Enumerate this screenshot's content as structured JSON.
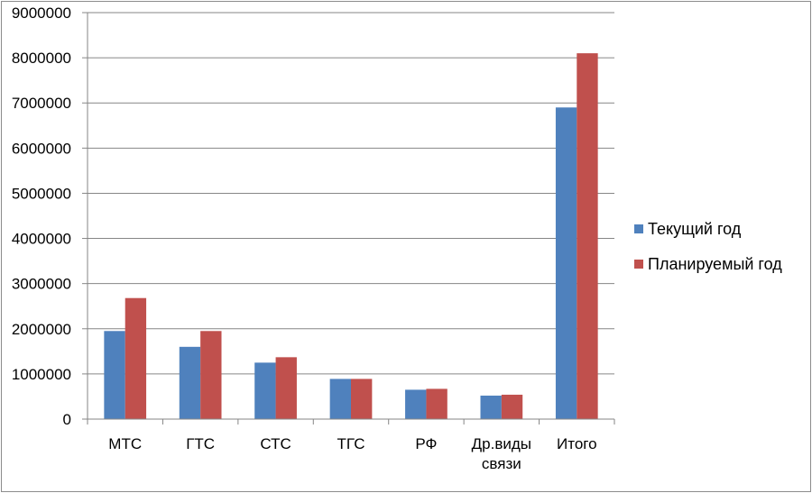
{
  "chart_data": {
    "type": "bar",
    "title": "",
    "xlabel": "",
    "ylabel": "",
    "categories": [
      [
        "МТС"
      ],
      [
        "ГТС"
      ],
      [
        "СТС"
      ],
      [
        "ТГС"
      ],
      [
        "РФ"
      ],
      [
        "Др.виды",
        "связи"
      ],
      [
        "Итого"
      ]
    ],
    "series": [
      {
        "name": "Текущий год",
        "color": "#4f81bd",
        "values": [
          1950000,
          1600000,
          1250000,
          890000,
          650000,
          520000,
          6900000
        ]
      },
      {
        "name": "Планируемый год",
        "color": "#c0504d",
        "values": [
          2680000,
          1950000,
          1370000,
          890000,
          670000,
          540000,
          8100000
        ]
      }
    ],
    "ylim": [
      0,
      9000000
    ],
    "yticks": [
      "0",
      "1000000",
      "2000000",
      "3000000",
      "4000000",
      "5000000",
      "6000000",
      "7000000",
      "8000000",
      "9000000"
    ],
    "grid": true,
    "legend_position": "right"
  }
}
